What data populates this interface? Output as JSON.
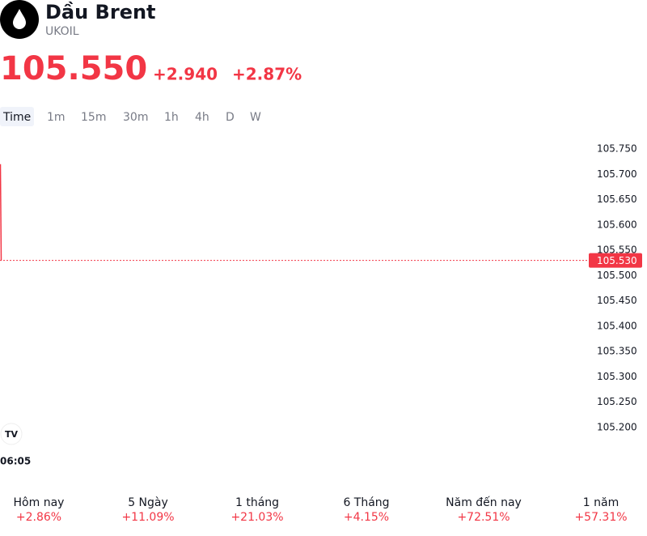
{
  "header": {
    "title": "Dầu Brent",
    "symbol": "UKOIL",
    "price": "105.550",
    "change": "+2.940",
    "change_percent": "+2.87%"
  },
  "timeframes": [
    "Time",
    "1m",
    "15m",
    "30m",
    "1h",
    "4h",
    "D",
    "W"
  ],
  "chart_data": {
    "type": "line",
    "categories": [
      "06:05",
      null
    ],
    "series": [
      {
        "name": "UKOIL",
        "color": "#f23645",
        "values": [
          105.72,
          105.53
        ],
        "value_labels": [
          null,
          "105.530"
        ]
      }
    ],
    "ylim": [
      105.2,
      105.75
    ],
    "yticks": [
      {
        "value": 105.75,
        "label": "105.750"
      },
      {
        "value": 105.7,
        "label": "105.700"
      },
      {
        "value": 105.65,
        "label": "105.650"
      },
      {
        "value": 105.6,
        "label": "105.600"
      },
      {
        "value": 105.55,
        "label": "105.550"
      },
      {
        "value": 105.5,
        "label": "105.500"
      },
      {
        "value": 105.45,
        "label": "105.450"
      },
      {
        "value": 105.4,
        "label": "105.400"
      },
      {
        "value": 105.35,
        "label": "105.350"
      },
      {
        "value": 105.3,
        "label": "105.300"
      },
      {
        "value": 105.25,
        "label": "105.250"
      },
      {
        "value": 105.2,
        "label": "105.200"
      }
    ],
    "grid": false
  },
  "performance": [
    {
      "label": "Hôm nay",
      "value": "+2.86%"
    },
    {
      "label": "5 Ngày",
      "value": "+11.09%"
    },
    {
      "label": "1 tháng",
      "value": "+21.03%"
    },
    {
      "label": "6 Tháng",
      "value": "+4.15%"
    },
    {
      "label": "Năm đến nay",
      "value": "+72.51%"
    },
    {
      "label": "1 năm",
      "value": "+57.31%"
    }
  ]
}
